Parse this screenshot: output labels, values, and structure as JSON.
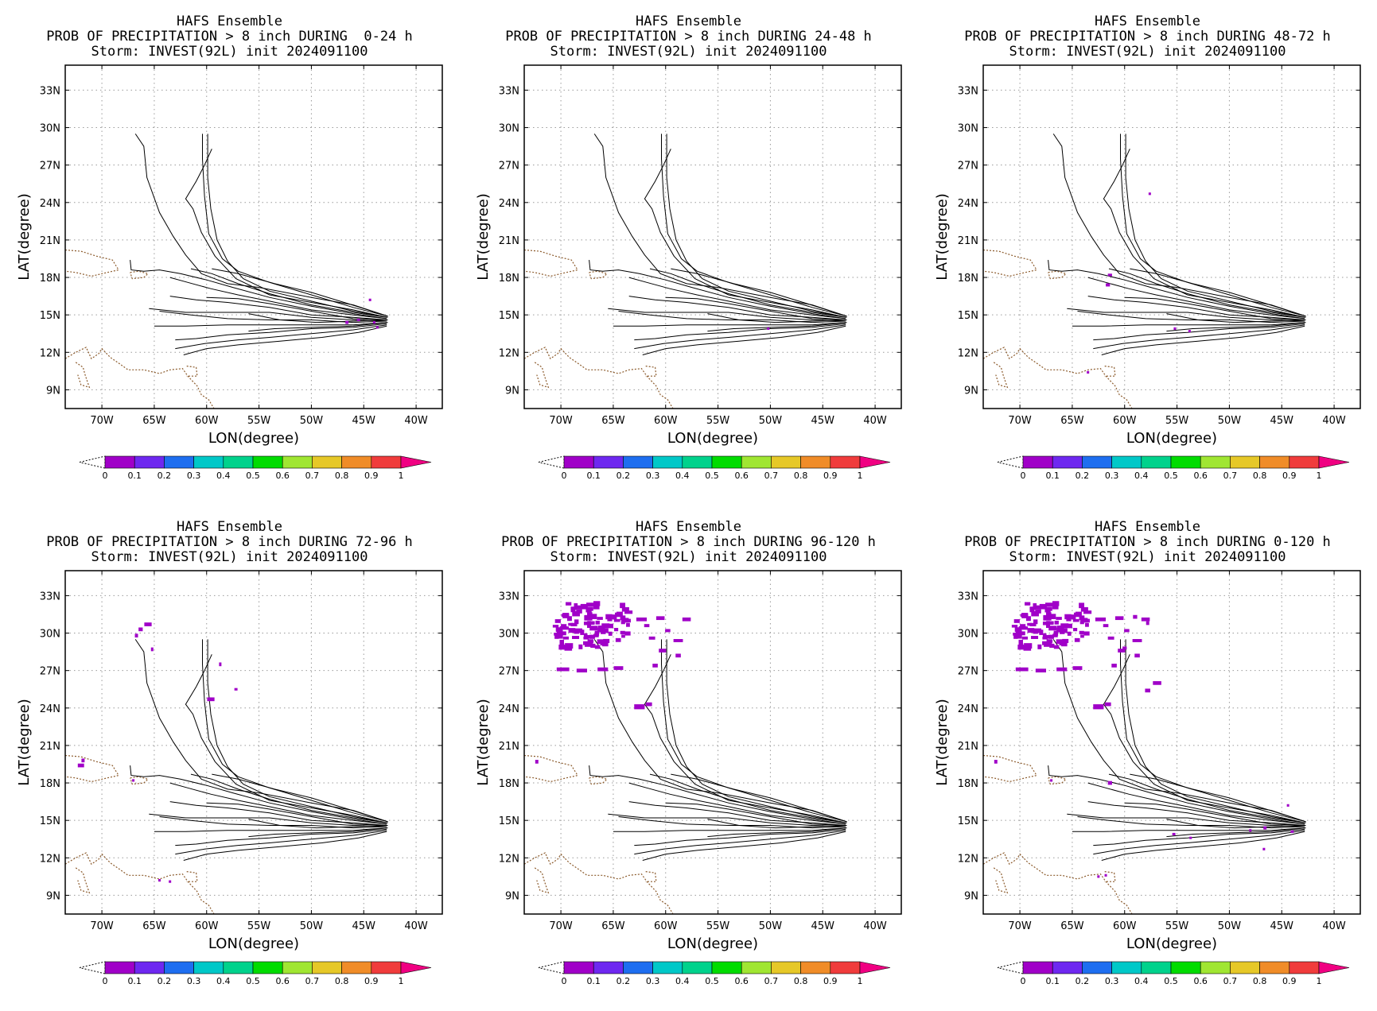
{
  "common": {
    "model": "HAFS Ensemble",
    "storm_line": "Storm: INVEST(92L) init 2024091100",
    "xlabel": "LON(degree)",
    "ylabel": "LAT(degree)",
    "lon_ticks": [
      "70W",
      "65W",
      "60W",
      "55W",
      "50W",
      "45W",
      "40W"
    ],
    "lat_ticks": [
      "9N",
      "12N",
      "15N",
      "18N",
      "21N",
      "24N",
      "27N",
      "30N",
      "33N"
    ],
    "colorbar_ticks": [
      "0",
      "0.1",
      "0.2",
      "0.3",
      "0.4",
      "0.5",
      "0.6",
      "0.7",
      "0.8",
      "0.9",
      "1"
    ],
    "colorbar_colors": [
      "#a000c8",
      "#6e28f0",
      "#1e6ef0",
      "#00c8c8",
      "#00d28c",
      "#00dc00",
      "#a0e632",
      "#e6c828",
      "#f08c28",
      "#f03c3c",
      "#f00082"
    ],
    "precip_color": "#a000c8",
    "track_color": "#000000",
    "coast_color": "#8b5a2b",
    "grid": "dotted"
  },
  "panels": [
    {
      "title": "PROB OF PRECIPITATION > 8 inch DURING  0-24 h",
      "period": "0-24 h"
    },
    {
      "title": "PROB OF PRECIPITATION > 8 inch DURING 24-48 h",
      "period": "24-48 h"
    },
    {
      "title": "PROB OF PRECIPITATION > 8 inch DURING 48-72 h",
      "period": "48-72 h"
    },
    {
      "title": "PROB OF PRECIPITATION > 8 inch DURING 72-96 h",
      "period": "72-96 h"
    },
    {
      "title": "PROB OF PRECIPITATION > 8 inch DURING 96-120 h",
      "period": "96-120 h"
    },
    {
      "title": "PROB OF PRECIPITATION > 8 inch DURING 0-120 h",
      "period": "0-120 h"
    }
  ]
}
